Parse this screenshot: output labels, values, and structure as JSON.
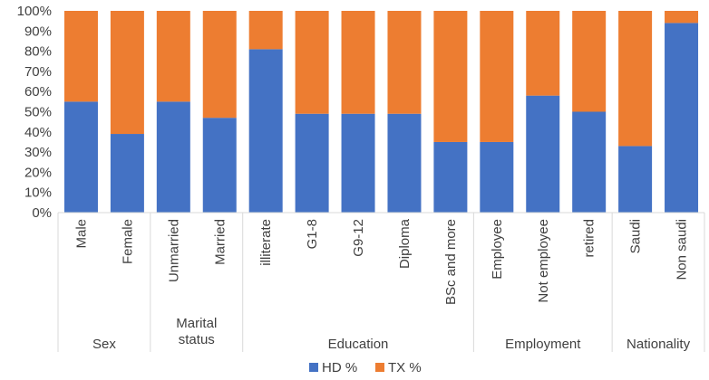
{
  "chart_data": {
    "type": "bar",
    "stacked": true,
    "ylim": [
      0,
      100
    ],
    "y_ticks": [
      "0%",
      "10%",
      "20%",
      "30%",
      "40%",
      "50%",
      "60%",
      "70%",
      "80%",
      "90%",
      "100%"
    ],
    "categories": [
      "Male",
      "Female",
      "Unmarried",
      "Married",
      "illiterate",
      "G1-8",
      "G9-12",
      "Diploma",
      "BSc and more",
      "Employee",
      "Not employee",
      "retired",
      "Saudi",
      "Non saudi"
    ],
    "groups": [
      {
        "label": "Sex",
        "count": 2
      },
      {
        "label": "Marital status",
        "count": 2
      },
      {
        "label": "Education",
        "count": 5
      },
      {
        "label": "Employment",
        "count": 3
      },
      {
        "label": "Nationality",
        "count": 2
      }
    ],
    "series": [
      {
        "name": "HD %",
        "color": "#4472C4",
        "values": [
          55,
          39,
          55,
          47,
          81,
          49,
          49,
          49,
          35,
          35,
          58,
          50,
          33,
          94
        ]
      },
      {
        "name": "TX %",
        "color": "#ED7D31",
        "values": [
          45,
          61,
          45,
          53,
          19,
          51,
          51,
          51,
          65,
          65,
          42,
          50,
          67,
          6
        ]
      }
    ],
    "legend_position": "bottom",
    "grid": false
  },
  "axis_color": "#d9d9d9",
  "text_color": "#404040"
}
